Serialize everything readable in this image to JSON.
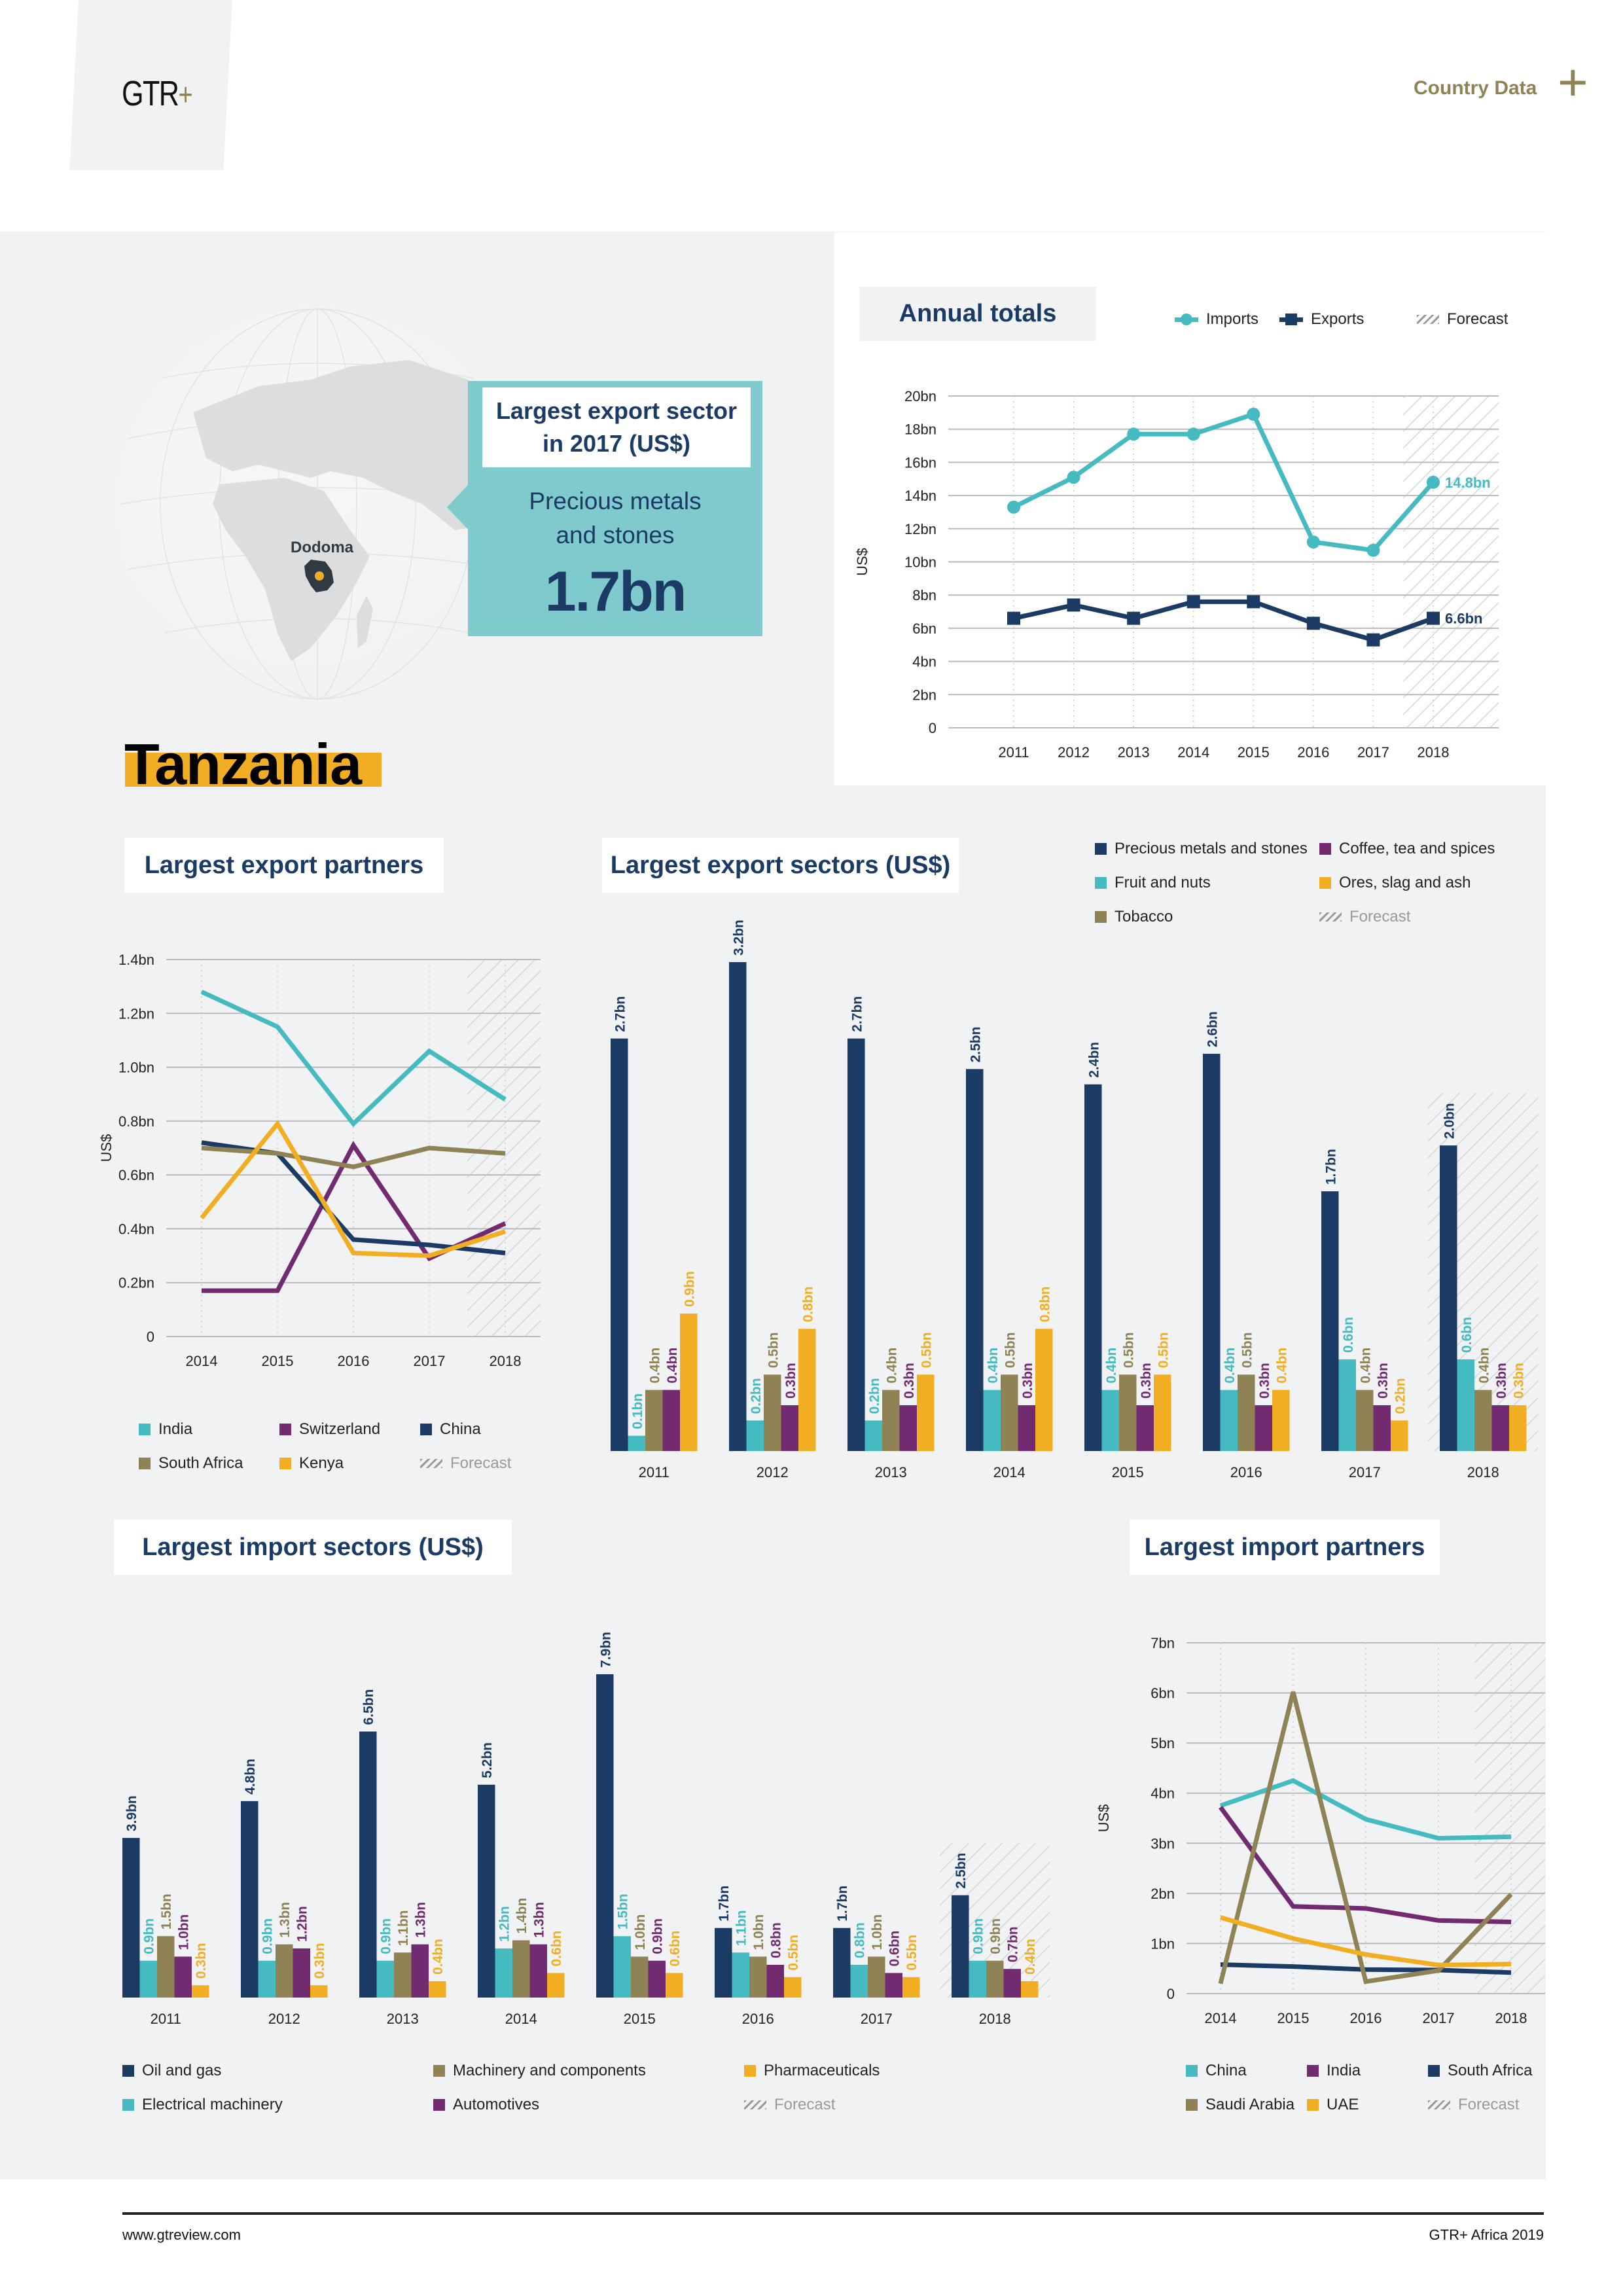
{
  "header": {
    "logo": "GTR",
    "logo_plus": "+",
    "section": "Country Data",
    "section_plus": "+"
  },
  "country": {
    "name": "Tanzania",
    "capital": "Dodoma"
  },
  "highlight": {
    "title_line1": "Largest export sector",
    "title_line2": "in 2017 (US$)",
    "sector_line1": "Precious metals",
    "sector_line2": "and stones",
    "value": "1.7bn"
  },
  "colors": {
    "navy": "#1b3a64",
    "teal": "#45bbc1",
    "olive": "#8f8356",
    "purple": "#722b70",
    "orange": "#f2ae23",
    "gold_text": "#8f8356",
    "background_gray": "#f1f2f4"
  },
  "footer": {
    "website": "www.gtreview.com",
    "publication": "GTR+ Africa 2019"
  },
  "chart_data": [
    {
      "id": "annual_totals",
      "type": "line",
      "title": "Annual totals",
      "xlabel": "",
      "ylabel": "US$",
      "x": [
        "2011",
        "2012",
        "2013",
        "2014",
        "2015",
        "2016",
        "2017",
        "2018"
      ],
      "ylim": [
        0,
        20
      ],
      "yticks": [
        "0",
        "2bn",
        "4bn",
        "6bn",
        "8bn",
        "10bn",
        "12bn",
        "14bn",
        "16bn",
        "18bn",
        "20bn"
      ],
      "grid": true,
      "forecast": [
        "2018"
      ],
      "legend": [
        "Imports",
        "Exports",
        "Forecast"
      ],
      "legend_position": "top-right",
      "series": [
        {
          "name": "Imports",
          "color": "#45bbc1",
          "marker": "circle",
          "values": [
            13.3,
            15.1,
            17.7,
            17.7,
            18.9,
            11.2,
            10.7,
            14.8
          ],
          "end_label": "14.8bn"
        },
        {
          "name": "Exports",
          "color": "#1b3a64",
          "marker": "square",
          "values": [
            6.6,
            7.4,
            6.6,
            7.6,
            7.6,
            6.3,
            5.3,
            6.6
          ],
          "end_label": "6.6bn"
        }
      ]
    },
    {
      "id": "export_partners",
      "type": "line",
      "title": "Largest export partners",
      "xlabel": "",
      "ylabel": "US$",
      "x": [
        "2014",
        "2015",
        "2016",
        "2017",
        "2018"
      ],
      "ylim": [
        0,
        1.4
      ],
      "yticks": [
        "0",
        "0.2bn",
        "0.4bn",
        "0.6bn",
        "0.8bn",
        "1.0bn",
        "1.2bn",
        "1.4bn"
      ],
      "grid": true,
      "forecast": [
        "2018"
      ],
      "legend_position": "bottom",
      "legend": [
        "India",
        "Switzerland",
        "China",
        "South Africa",
        "Kenya",
        "Forecast"
      ],
      "series": [
        {
          "name": "India",
          "color": "#45bbc1",
          "values": [
            1.28,
            1.15,
            0.79,
            1.06,
            0.88
          ]
        },
        {
          "name": "Switzerland",
          "color": "#722b70",
          "values": [
            0.17,
            0.17,
            0.71,
            0.29,
            0.42
          ]
        },
        {
          "name": "China",
          "color": "#1b3a64",
          "values": [
            0.72,
            0.68,
            0.36,
            0.34,
            0.31
          ]
        },
        {
          "name": "South Africa",
          "color": "#8f8356",
          "values": [
            0.7,
            0.68,
            0.63,
            0.7,
            0.68
          ]
        },
        {
          "name": "Kenya",
          "color": "#f2ae23",
          "values": [
            0.44,
            0.79,
            0.31,
            0.3,
            0.39
          ]
        }
      ]
    },
    {
      "id": "export_sectors",
      "type": "bar",
      "title": "Largest export sectors (US$)",
      "xlabel": "",
      "ylabel": "",
      "categories": [
        "2011",
        "2012",
        "2013",
        "2014",
        "2015",
        "2016",
        "2017",
        "2018"
      ],
      "forecast": [
        "2018"
      ],
      "ylim": [
        0,
        3.2
      ],
      "legend_position": "top-right",
      "legend": [
        "Precious metals and stones",
        "Coffee, tea and spices",
        "Fruit and nuts",
        "Ores, slag and ash",
        "Tobacco",
        "Forecast"
      ],
      "series": [
        {
          "name": "Precious metals and stones",
          "color": "#1b3a64",
          "values": [
            2.7,
            3.2,
            2.7,
            2.5,
            2.4,
            2.6,
            1.7,
            2.0
          ]
        },
        {
          "name": "Fruit and nuts",
          "color": "#45bbc1",
          "values": [
            0.1,
            0.2,
            0.2,
            0.4,
            0.4,
            0.4,
            0.6,
            0.6
          ]
        },
        {
          "name": "Tobacco",
          "color": "#8f8356",
          "values": [
            0.4,
            0.5,
            0.4,
            0.5,
            0.5,
            0.5,
            0.4,
            0.4
          ]
        },
        {
          "name": "Coffee, tea and spices",
          "color": "#722b70",
          "values": [
            0.4,
            0.3,
            0.3,
            0.3,
            0.3,
            0.3,
            0.3,
            0.3
          ]
        },
        {
          "name": "Ores, slag and ash",
          "color": "#f2ae23",
          "values": [
            0.9,
            0.8,
            0.5,
            0.8,
            0.5,
            0.4,
            0.2,
            0.3
          ]
        }
      ]
    },
    {
      "id": "import_sectors",
      "type": "bar",
      "title": "Largest import sectors (US$)",
      "xlabel": "",
      "ylabel": "",
      "categories": [
        "2011",
        "2012",
        "2013",
        "2014",
        "2015",
        "2016",
        "2017",
        "2018"
      ],
      "forecast": [
        "2018"
      ],
      "ylim": [
        0,
        7.9
      ],
      "legend_position": "bottom",
      "legend": [
        "Oil and gas",
        "Machinery and components",
        "Pharmaceuticals",
        "Electrical machinery",
        "Automotives",
        "Forecast"
      ],
      "series": [
        {
          "name": "Oil and gas",
          "color": "#1b3a64",
          "values": [
            3.9,
            4.8,
            6.5,
            5.2,
            7.9,
            1.7,
            1.7,
            2.5
          ]
        },
        {
          "name": "Electrical machinery",
          "color": "#45bbc1",
          "values": [
            0.9,
            0.9,
            0.9,
            1.2,
            1.5,
            1.1,
            0.8,
            0.9
          ]
        },
        {
          "name": "Machinery and components",
          "color": "#8f8356",
          "values": [
            1.5,
            1.3,
            1.1,
            1.4,
            1.0,
            1.0,
            1.0,
            0.9
          ]
        },
        {
          "name": "Automotives",
          "color": "#722b70",
          "values": [
            1.0,
            1.2,
            1.3,
            1.3,
            0.9,
            0.8,
            0.6,
            0.7
          ]
        },
        {
          "name": "Pharmaceuticals",
          "color": "#f2ae23",
          "values": [
            0.3,
            0.3,
            0.4,
            0.6,
            0.6,
            0.5,
            0.5,
            0.4
          ]
        }
      ]
    },
    {
      "id": "import_partners",
      "type": "line",
      "title": "Largest import partners",
      "xlabel": "",
      "ylabel": "US$",
      "x": [
        "2014",
        "2015",
        "2016",
        "2017",
        "2018"
      ],
      "ylim": [
        0,
        7
      ],
      "yticks": [
        "0",
        "1bn",
        "2bn",
        "3bn",
        "4bn",
        "5bn",
        "6bn",
        "7bn"
      ],
      "grid": true,
      "forecast": [
        "2018"
      ],
      "legend_position": "bottom",
      "legend": [
        "China",
        "India",
        "South Africa",
        "Saudi Arabia",
        "UAE",
        "Forecast"
      ],
      "series": [
        {
          "name": "China",
          "color": "#45bbc1",
          "values": [
            3.75,
            4.25,
            3.48,
            3.1,
            3.13
          ]
        },
        {
          "name": "India",
          "color": "#722b70",
          "values": [
            3.72,
            1.74,
            1.7,
            1.46,
            1.43
          ]
        },
        {
          "name": "South Africa",
          "color": "#1b3a64",
          "values": [
            0.58,
            0.54,
            0.48,
            0.47,
            0.42
          ]
        },
        {
          "name": "Saudi Arabia",
          "color": "#8f8356",
          "values": [
            0.2,
            6.02,
            0.24,
            0.46,
            1.98
          ]
        },
        {
          "name": "UAE",
          "color": "#f2ae23",
          "values": [
            1.52,
            1.1,
            0.78,
            0.57,
            0.59
          ]
        }
      ]
    }
  ]
}
